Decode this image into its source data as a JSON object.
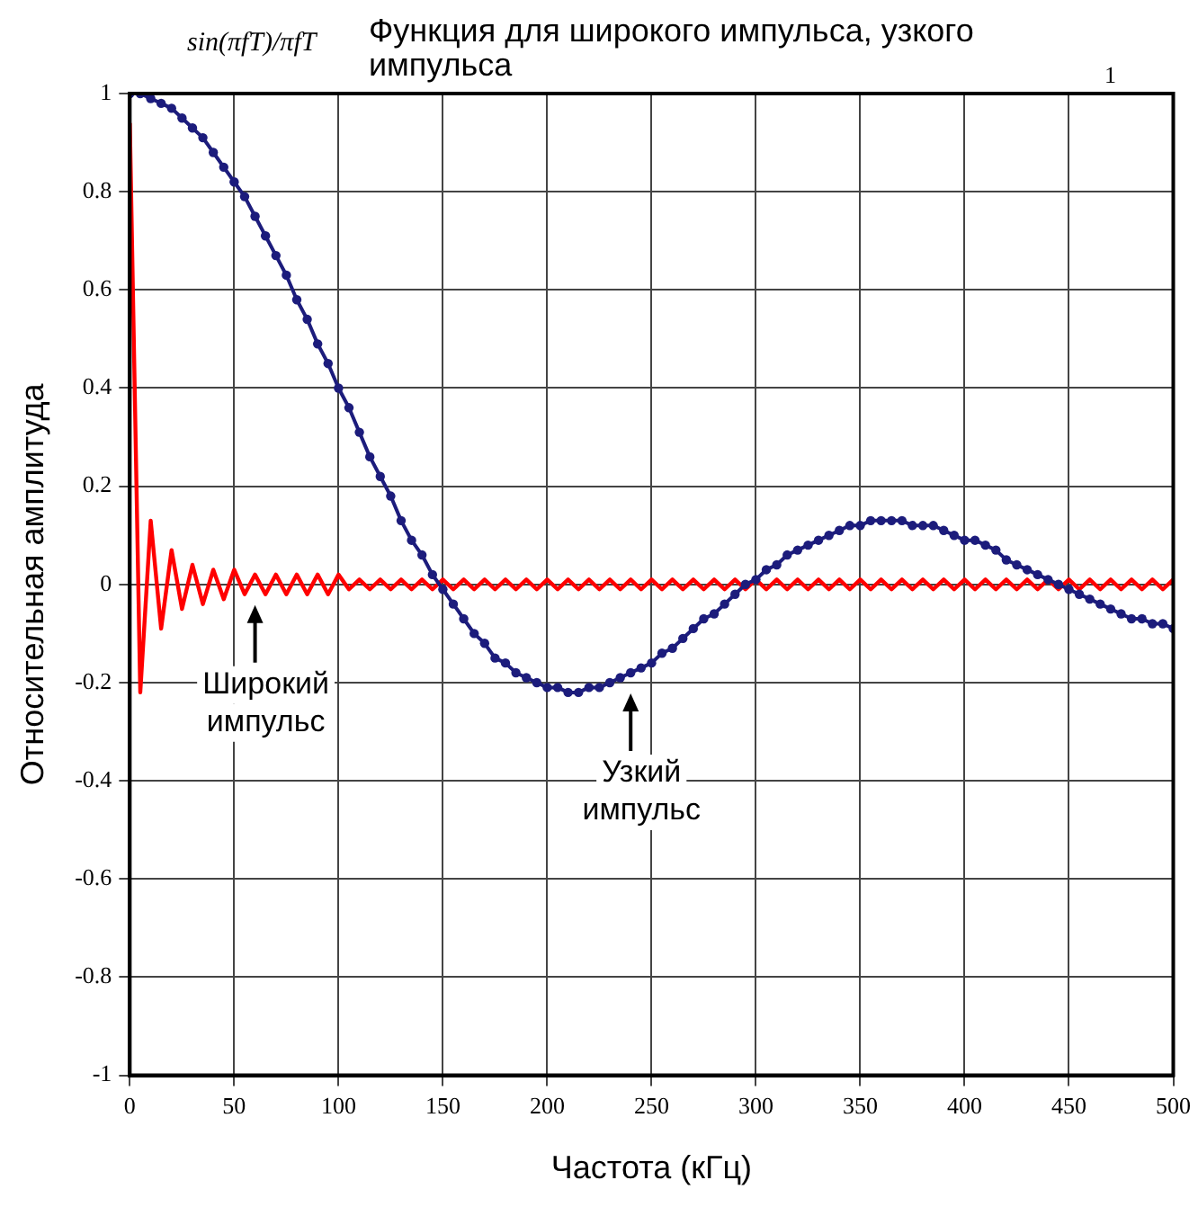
{
  "chart_data": {
    "type": "line",
    "title": "Функция для широкого импульса, узкого импульса",
    "xlabel": "Частота (кГц)",
    "ylabel": "Относительная амплитуда",
    "x": [
      0,
      5,
      10,
      15,
      20,
      25,
      30,
      35,
      40,
      45,
      50,
      55,
      60,
      65,
      70,
      75,
      80,
      85,
      90,
      95,
      100,
      105,
      110,
      115,
      120,
      125,
      130,
      135,
      140,
      145,
      150,
      155,
      160,
      165,
      170,
      175,
      180,
      185,
      190,
      195,
      200,
      205,
      210,
      215,
      220,
      225,
      230,
      235,
      240,
      245,
      250,
      255,
      260,
      265,
      270,
      275,
      280,
      285,
      290,
      295,
      300,
      305,
      310,
      315,
      320,
      325,
      330,
      335,
      340,
      345,
      350,
      355,
      360,
      365,
      370,
      375,
      380,
      385,
      390,
      395,
      400,
      405,
      410,
      415,
      420,
      425,
      430,
      435,
      440,
      445,
      450,
      455,
      460,
      465,
      470,
      475,
      480,
      485,
      490,
      495,
      500
    ],
    "series": [
      {
        "color": "#1c1c7c",
        "marker": "circle",
        "values": [
          1,
          1,
          0.99,
          0.98,
          0.97,
          0.95,
          0.93,
          0.91,
          0.88,
          0.85,
          0.82,
          0.79,
          0.75,
          0.71,
          0.67,
          0.63,
          0.58,
          0.54,
          0.49,
          0.45,
          0.4,
          0.36,
          0.31,
          0.26,
          0.22,
          0.18,
          0.13,
          0.09,
          0.06,
          0.02,
          -0.01,
          -0.04,
          -0.07,
          -0.1,
          -0.12,
          -0.15,
          -0.16,
          -0.18,
          -0.19,
          -0.2,
          -0.21,
          -0.21,
          -0.22,
          -0.22,
          -0.21,
          -0.21,
          -0.2,
          -0.19,
          -0.18,
          -0.17,
          -0.16,
          -0.14,
          -0.13,
          -0.11,
          -0.09,
          -0.07,
          -0.06,
          -0.04,
          -0.02,
          0.0,
          0.01,
          0.03,
          0.04,
          0.06,
          0.07,
          0.08,
          0.09,
          0.1,
          0.11,
          0.12,
          0.12,
          0.13,
          0.13,
          0.13,
          0.13,
          0.12,
          0.12,
          0.12,
          0.11,
          0.1,
          0.09,
          0.09,
          0.08,
          0.07,
          0.05,
          0.04,
          0.03,
          0.02,
          0.01,
          0.0,
          -0.01,
          -0.02,
          -0.03,
          -0.04,
          -0.05,
          -0.06,
          -0.07,
          -0.07,
          -0.08,
          -0.08,
          -0.09
        ]
      },
      {
        "color": "#ff0000",
        "marker": "none",
        "values": [
          0.94,
          -0.22,
          0.13,
          -0.09,
          0.07,
          -0.05,
          0.04,
          -0.04,
          0.03,
          -0.03,
          0.03,
          -0.02,
          0.02,
          -0.02,
          0.02,
          -0.02,
          0.02,
          -0.02,
          0.02,
          -0.02,
          0.02,
          -0.01,
          0.01,
          -0.01,
          0.01,
          -0.01,
          0.01,
          -0.01,
          0.01,
          -0.01,
          0.01,
          -0.01,
          0.01,
          -0.01,
          0.01,
          -0.01,
          0.01,
          -0.01,
          0.01,
          -0.01,
          0.01,
          -0.01,
          0.01,
          -0.01,
          0.01,
          -0.01,
          0.01,
          -0.01,
          0.01,
          -0.01,
          0.01,
          -0.01,
          0.01,
          -0.01,
          0.01,
          -0.01,
          0.01,
          -0.01,
          0.01,
          -0.01,
          0.01,
          -0.01,
          0.01,
          -0.01,
          0.01,
          -0.01,
          0.01,
          -0.01,
          0.01,
          -0.01,
          0.01,
          -0.01,
          0.01,
          -0.01,
          0.01,
          -0.01,
          0.01,
          -0.01,
          0.01,
          -0.01,
          0.01,
          -0.01,
          0.01,
          -0.01,
          0.01,
          -0.01,
          0.01,
          -0.01,
          0.01,
          -0.01,
          0.01,
          -0.01,
          0.01,
          -0.01,
          0.01,
          -0.01,
          0.01,
          -0.01,
          0.01,
          -0.01,
          0.01
        ]
      }
    ],
    "xlim": [
      0,
      500
    ],
    "xticks": [
      0,
      50,
      100,
      150,
      200,
      250,
      300,
      350,
      400,
      450,
      500
    ],
    "ylim": [
      -1,
      1
    ],
    "yticks": [
      -1,
      -0.8,
      -0.6,
      -0.4,
      -0.2,
      0,
      0.2,
      0.4,
      0.6,
      0.8,
      1
    ],
    "grid": true,
    "legend": false,
    "annotations": [
      "sin(πfT)/πfT",
      "1",
      {
        "text": "Широкий импульс",
        "x": 60,
        "y": -0.02
      },
      {
        "text": "Узкий импульс",
        "x": 240,
        "y": -0.2
      }
    ]
  }
}
